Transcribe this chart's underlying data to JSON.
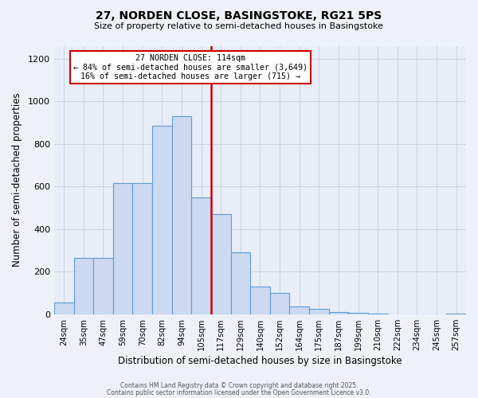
{
  "title": "27, NORDEN CLOSE, BASINGSTOKE, RG21 5PS",
  "subtitle": "Size of property relative to semi-detached houses in Basingstoke",
  "xlabel": "Distribution of semi-detached houses by size in Basingstoke",
  "ylabel": "Number of semi-detached properties",
  "bar_labels": [
    "24sqm",
    "35sqm",
    "47sqm",
    "59sqm",
    "70sqm",
    "82sqm",
    "94sqm",
    "105sqm",
    "117sqm",
    "129sqm",
    "140sqm",
    "152sqm",
    "164sqm",
    "175sqm",
    "187sqm",
    "199sqm",
    "210sqm",
    "222sqm",
    "234sqm",
    "245sqm",
    "257sqm"
  ],
  "bar_heights": [
    55,
    265,
    265,
    615,
    615,
    885,
    930,
    550,
    470,
    290,
    130,
    100,
    35,
    25,
    12,
    5,
    2,
    1,
    0,
    0,
    2
  ],
  "bar_color": "#ccd9f0",
  "bar_edge_color": "#5b9bd5",
  "vline_color": "#cc0000",
  "annotation_title": "27 NORDEN CLOSE: 114sqm",
  "annotation_line1": "← 84% of semi-detached houses are smaller (3,649)",
  "annotation_line2": "16% of semi-detached houses are larger (715) →",
  "annotation_box_edge": "#cc0000",
  "ylim": [
    0,
    1260
  ],
  "yticks": [
    0,
    200,
    400,
    600,
    800,
    1000,
    1200
  ],
  "footer1": "Contains HM Land Registry data © Crown copyright and database right 2025.",
  "footer2": "Contains public sector information licensed under the Open Government Licence v3.0.",
  "bg_color": "#eef2f8",
  "plot_bg_color": "#e8edf8"
}
